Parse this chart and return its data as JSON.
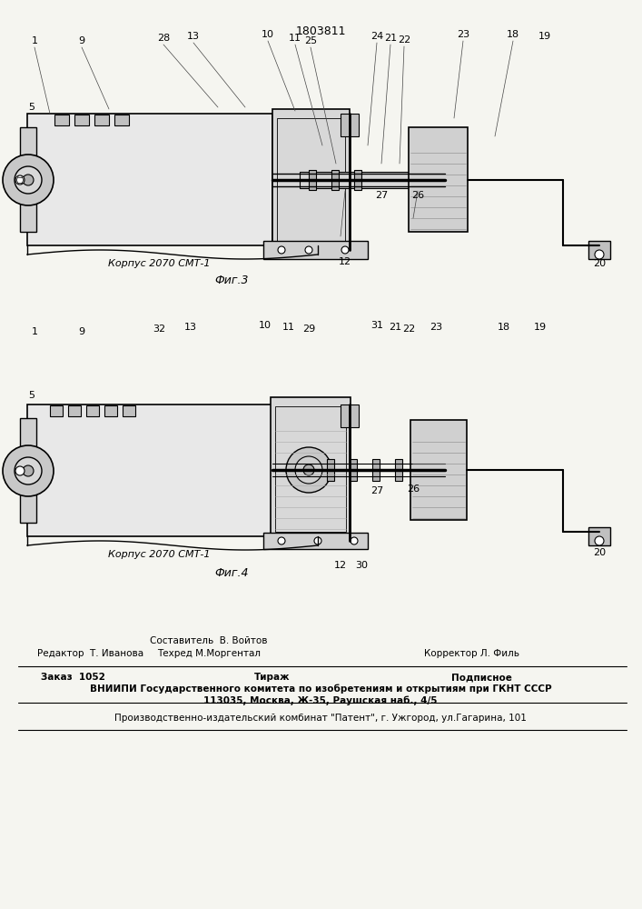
{
  "patent_number": "1803811",
  "background_color": "#f5f5f0",
  "fig3_caption": "Фиг.3",
  "fig4_caption": "Фиг.4",
  "korpus_label": "Корпус 2070 СМТ-1",
  "footer": {
    "editor_label": "Редактор",
    "editor_name": "Т. Иванова",
    "composer_label": "Составитель",
    "composer_name": "В. Войтов",
    "techred_label": "Техред",
    "techred_name": "М.Моргентал",
    "corrector_label": "Корректор",
    "corrector_name": "Л. Филь",
    "order_label": "Заказ",
    "order_value": "1052",
    "tirazh_label": "Тираж",
    "podpisnoe_label": "Подписное",
    "vnipi_line1": "ВНИИПИ Государственного комитета по изобретениям и открытиям при ГКНТ СССР",
    "vnipi_line2": "113035, Москва, Ж-35, Раушская наб., 4/5",
    "factory_line": "Производственно-издательский комбинат \"Патент\", г. Ужгород, ул.Гагарина, 101"
  }
}
